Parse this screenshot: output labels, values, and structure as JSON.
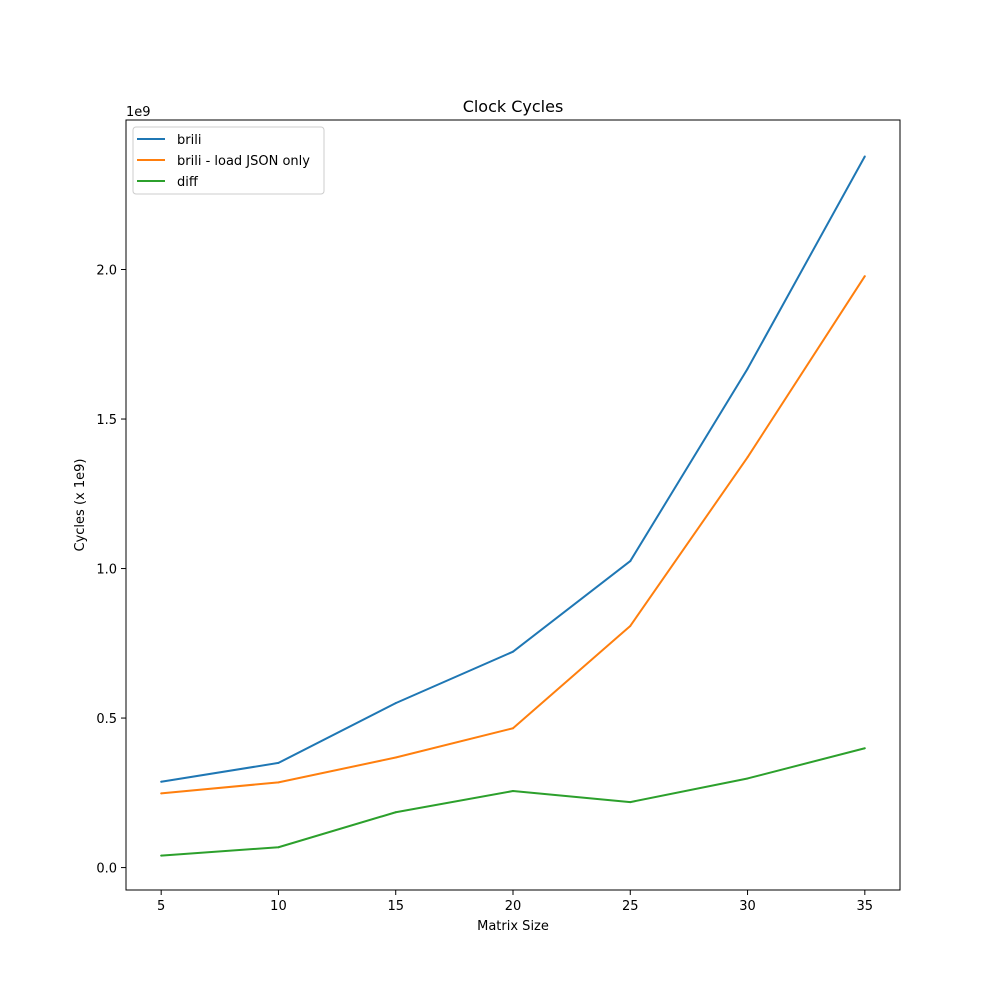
{
  "chart_data": {
    "type": "line",
    "title": "Clock Cycles",
    "xlabel": "Matrix Size",
    "ylabel": "Cycles (x 1e9)",
    "offset_label": "1e9",
    "x": [
      5,
      10,
      15,
      20,
      25,
      30,
      35
    ],
    "xlim": [
      3.5,
      36.5
    ],
    "ylim": [
      -0.075,
      2.5
    ],
    "x_ticks": [
      5,
      10,
      15,
      20,
      25,
      30,
      35
    ],
    "x_tick_labels": [
      "5",
      "10",
      "15",
      "20",
      "25",
      "30",
      "35"
    ],
    "y_ticks": [
      0.0,
      0.5,
      1.0,
      1.5,
      2.0
    ],
    "y_tick_labels": [
      "0.0",
      "0.5",
      "1.0",
      "1.5",
      "2.0"
    ],
    "grid": false,
    "legend_position": "top-left",
    "series": [
      {
        "name": "brili",
        "color": "#1f77b4",
        "values": [
          0.287,
          0.35,
          0.55,
          0.722,
          1.025,
          1.668,
          2.378
        ]
      },
      {
        "name": "brili - load JSON only",
        "color": "#ff7f0e",
        "values": [
          0.248,
          0.285,
          0.368,
          0.466,
          0.808,
          1.372,
          1.978
        ]
      },
      {
        "name": "diff",
        "color": "#2ca02c",
        "values": [
          0.04,
          0.068,
          0.185,
          0.256,
          0.219,
          0.298,
          0.399
        ]
      }
    ]
  }
}
